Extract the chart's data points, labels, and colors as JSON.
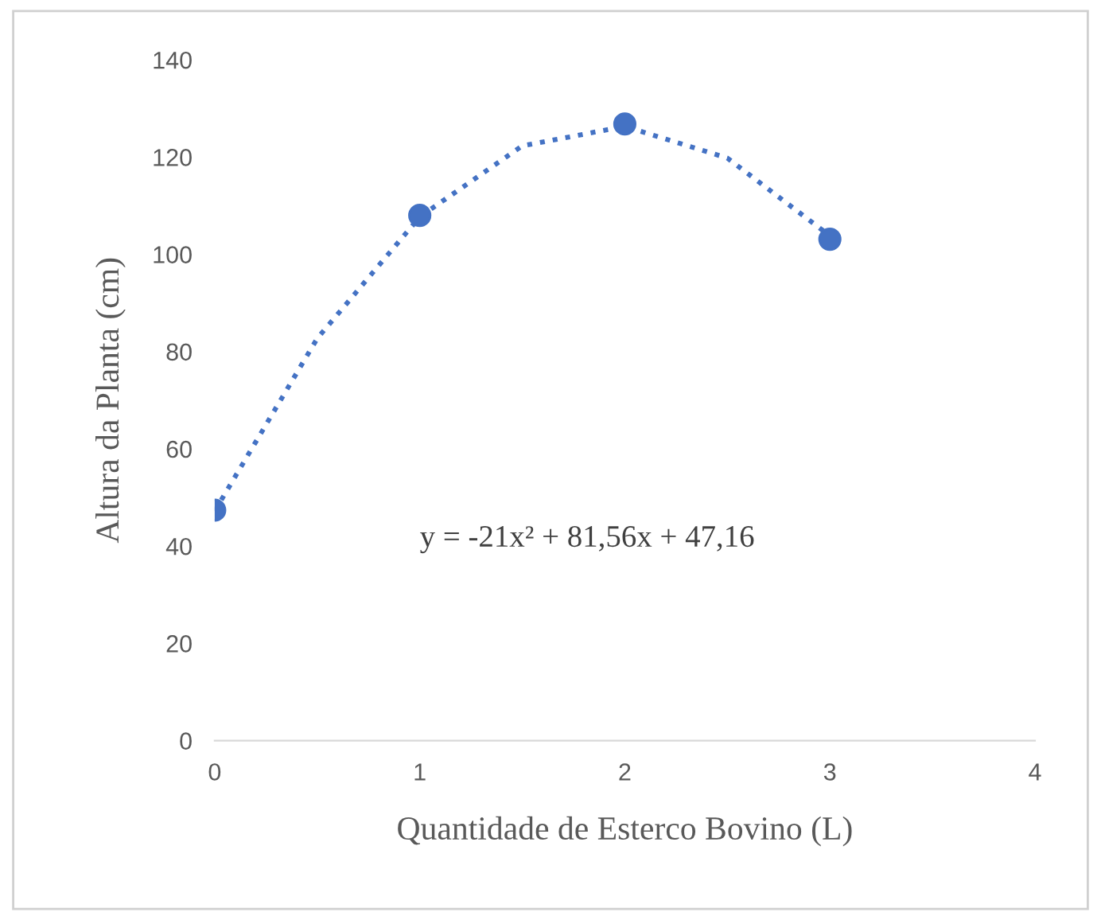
{
  "chart_data": {
    "type": "scatter",
    "xlabel": "Quantidade de Esterco Bovino (L)",
    "ylabel": "Altura da Planta (cm)",
    "series": [
      {
        "color": "#4472c4",
        "marker": "circle",
        "x": [
          0,
          1,
          2,
          3
        ],
        "values": [
          47.4,
          108,
          126.8,
          103.1
        ]
      },
      {
        "type": "line",
        "color": "#4472c4",
        "line_style": "dotted",
        "marker": "none",
        "x": [
          0,
          0.5,
          1,
          1.5,
          2,
          2.5,
          3
        ],
        "values": [
          47.2,
          82.7,
          107.7,
          122.3,
          126.3,
          119.8,
          103.8
        ]
      }
    ],
    "annotations": [
      {
        "text": "y = -21x² + 81,56x + 47,16"
      }
    ],
    "xlim": [
      0,
      4
    ],
    "xticks": [
      0,
      1,
      2,
      3,
      4
    ],
    "ylim": [
      0,
      140
    ],
    "yticks": [
      0,
      20,
      40,
      60,
      80,
      100,
      120,
      140
    ],
    "grid": false,
    "legend": false
  }
}
